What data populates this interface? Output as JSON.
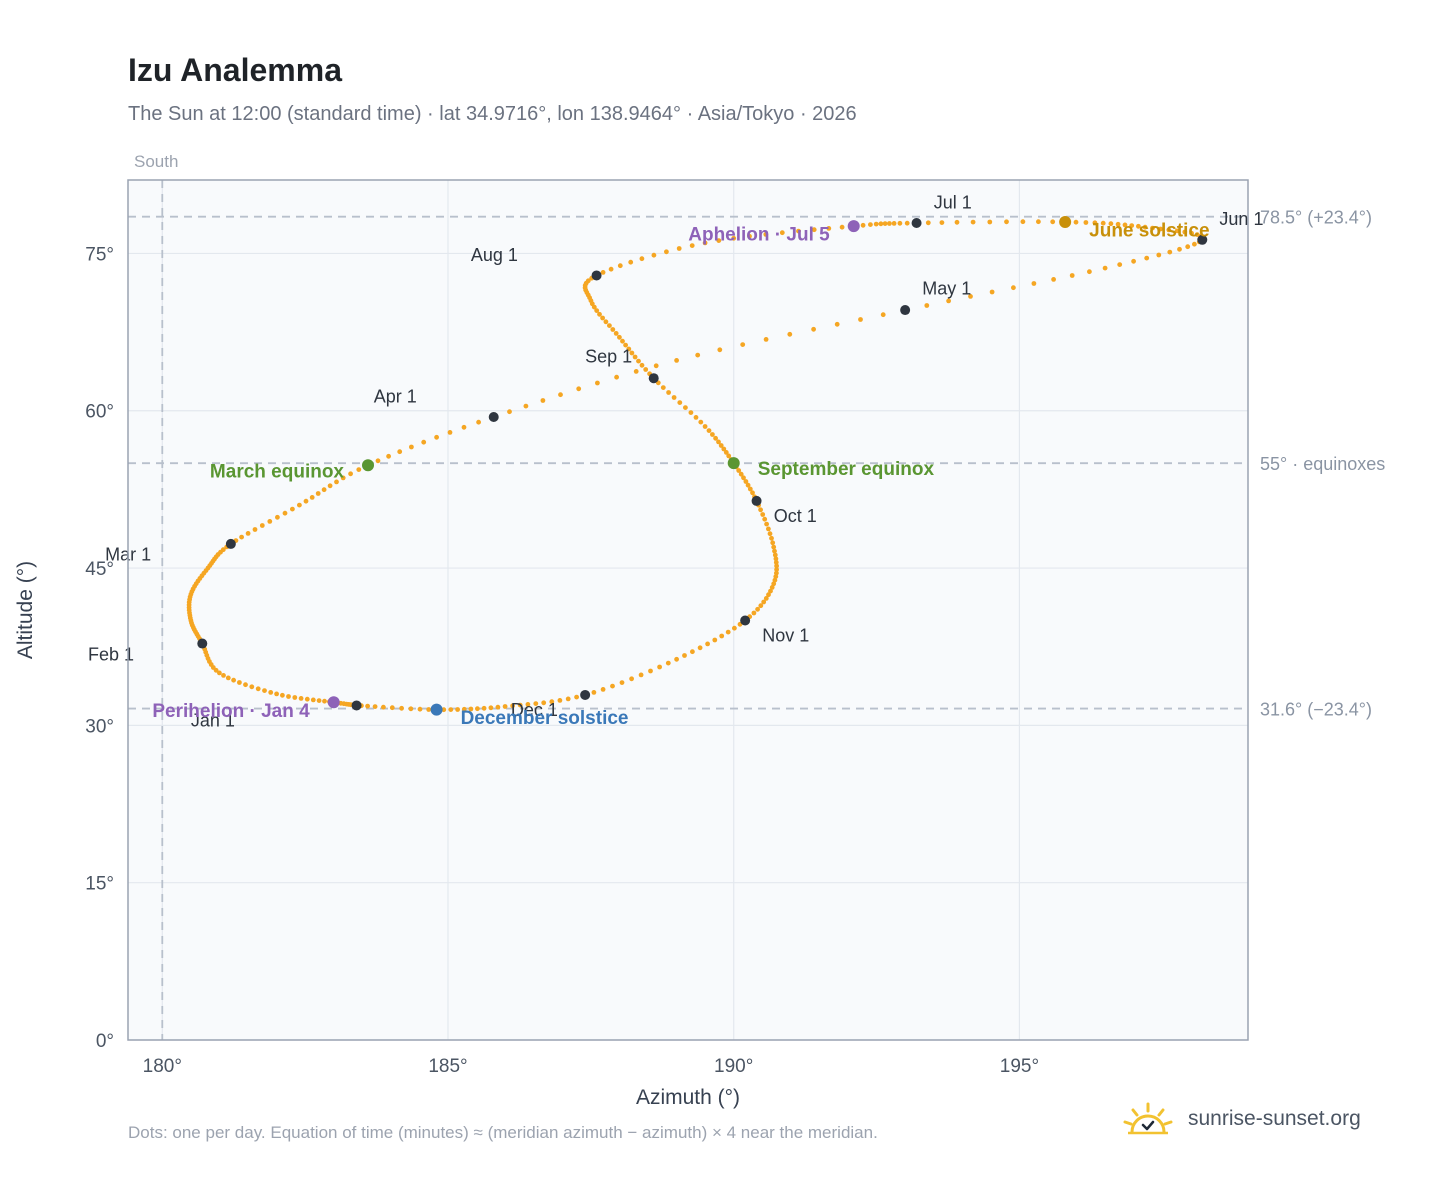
{
  "header": {
    "title": "Izu Analemma",
    "subtitle": "The Sun at 12:00 (standard time) · lat 34.9716°, lon 138.9464° · Asia/Tokyo · 2026"
  },
  "footer": {
    "note": "Dots: one per day. Equation of time (minutes) ≈ (meridian azimuth − azimuth) × 4 near the meridian.",
    "brand": "sunrise-sunset.org"
  },
  "colors": {
    "path": "#f5a623",
    "month_marker": "#2f3640",
    "equinox": "#5a9632",
    "june_solstice": "#c8900a",
    "december_solstice": "#3a78b8",
    "apsis": "#8e62b8",
    "reference_line": "#b8c0cc",
    "plot_background": "#f8fafc",
    "grid": "#e3e8ee",
    "frame": "#9aa3b2"
  },
  "chart_data": {
    "type": "scatter",
    "title": "Izu Analemma",
    "xlabel": "Azimuth (°)",
    "ylabel": "Altitude (°)",
    "xlim": [
      179.4,
      199.0
    ],
    "ylim": [
      0,
      82
    ],
    "xticks": [
      180,
      185,
      190,
      195
    ],
    "xtick_labels": [
      "180°",
      "185°",
      "190°",
      "195°"
    ],
    "yticks": [
      0,
      15,
      30,
      45,
      60,
      75
    ],
    "ytick_labels": [
      "0°",
      "15°",
      "30°",
      "45°",
      "60°",
      "75°"
    ],
    "grid": true,
    "meridian": {
      "azimuth": 180,
      "label": "South"
    },
    "reference_lines": [
      {
        "altitude": 78.5,
        "label": "78.5° (+23.4°)"
      },
      {
        "altitude": 55,
        "label": "55° · equinoxes"
      },
      {
        "altitude": 31.6,
        "label": "31.6° (−23.4°)"
      }
    ],
    "path_points": [
      {
        "az": 183.4,
        "alt": 31.9
      },
      {
        "az": 183.0,
        "alt": 32.2
      },
      {
        "az": 182.0,
        "alt": 33.0
      },
      {
        "az": 181.0,
        "alt": 35.0
      },
      {
        "az": 180.7,
        "alt": 37.8
      },
      {
        "az": 180.5,
        "alt": 40.0
      },
      {
        "az": 180.5,
        "alt": 42.5
      },
      {
        "az": 180.8,
        "alt": 45.0
      },
      {
        "az": 181.2,
        "alt": 47.3
      },
      {
        "az": 182.4,
        "alt": 51.0
      },
      {
        "az": 183.6,
        "alt": 54.8
      },
      {
        "az": 185.8,
        "alt": 59.4
      },
      {
        "az": 189.0,
        "alt": 64.8
      },
      {
        "az": 193.0,
        "alt": 69.6
      },
      {
        "az": 196.5,
        "alt": 73.6
      },
      {
        "az": 198.2,
        "alt": 76.3
      },
      {
        "az": 197.2,
        "alt": 77.5
      },
      {
        "az": 195.8,
        "alt": 78.0
      },
      {
        "az": 193.2,
        "alt": 77.9
      },
      {
        "az": 192.1,
        "alt": 77.6
      },
      {
        "az": 189.5,
        "alt": 76.0
      },
      {
        "az": 187.6,
        "alt": 72.9
      },
      {
        "az": 187.5,
        "alt": 70.5
      },
      {
        "az": 188.0,
        "alt": 67.0
      },
      {
        "az": 188.6,
        "alt": 63.1
      },
      {
        "az": 189.5,
        "alt": 58.5
      },
      {
        "az": 190.0,
        "alt": 55.0
      },
      {
        "az": 190.4,
        "alt": 51.4
      },
      {
        "az": 190.7,
        "alt": 47.0
      },
      {
        "az": 190.7,
        "alt": 43.5
      },
      {
        "az": 190.2,
        "alt": 40.0
      },
      {
        "az": 189.0,
        "alt": 36.3
      },
      {
        "az": 187.4,
        "alt": 32.9
      },
      {
        "az": 186.0,
        "alt": 31.8
      },
      {
        "az": 184.8,
        "alt": 31.5
      },
      {
        "az": 183.4,
        "alt": 31.9
      }
    ],
    "month_markers": [
      {
        "label": "Jan 1",
        "az": 183.4,
        "alt": 31.9,
        "lx": -2.9,
        "ly": -2.0
      },
      {
        "label": "Feb 1",
        "az": 180.7,
        "alt": 37.8,
        "lx": -2.0,
        "ly": -1.6
      },
      {
        "label": "Mar 1",
        "az": 181.2,
        "alt": 47.3,
        "lx": -2.2,
        "ly": -1.6
      },
      {
        "label": "Apr 1",
        "az": 185.8,
        "alt": 59.4,
        "lx": -2.1,
        "ly": 1.4
      },
      {
        "label": "May 1",
        "az": 193.0,
        "alt": 69.6,
        "lx": 0.3,
        "ly": 1.5
      },
      {
        "label": "Jun 1",
        "az": 198.2,
        "alt": 76.3,
        "lx": 0.3,
        "ly": 1.4
      },
      {
        "label": "Jul 1",
        "az": 193.2,
        "alt": 77.9,
        "lx": 0.3,
        "ly": 1.4
      },
      {
        "label": "Aug 1",
        "az": 187.6,
        "alt": 72.9,
        "lx": -2.2,
        "ly": 1.4
      },
      {
        "label": "Sep 1",
        "az": 188.6,
        "alt": 63.1,
        "lx": -1.2,
        "ly": 1.5
      },
      {
        "label": "Oct 1",
        "az": 190.4,
        "alt": 51.4,
        "lx": 0.3,
        "ly": -2.0
      },
      {
        "label": "Nov 1",
        "az": 190.2,
        "alt": 40.0,
        "lx": 0.3,
        "ly": -2.0
      },
      {
        "label": "Dec 1",
        "az": 187.4,
        "alt": 32.9,
        "lx": -1.3,
        "ly": -2.0
      }
    ],
    "events": [
      {
        "label": "March equinox",
        "az": 183.6,
        "alt": 54.8,
        "colorKey": "equinox",
        "anchor": "end",
        "lx": -0.35,
        "ly": -0.4
      },
      {
        "label": "September equinox",
        "az": 190.0,
        "alt": 55.0,
        "colorKey": "equinox",
        "anchor": "start",
        "lx": 0.35,
        "ly": -0.4
      },
      {
        "label": "June solstice",
        "az": 195.8,
        "alt": 78.0,
        "colorKey": "june_solstice",
        "anchor": "start",
        "lx": 0.35,
        "ly": -0.6
      },
      {
        "label": "December solstice",
        "az": 184.8,
        "alt": 31.5,
        "colorKey": "december_solstice",
        "anchor": "start",
        "lx": 0.35,
        "ly": -0.6
      },
      {
        "label": "Aphelion · Jul 5",
        "az": 192.1,
        "alt": 77.6,
        "colorKey": "apsis",
        "anchor": "end",
        "lx": -0.35,
        "ly": -0.6
      },
      {
        "label": "Perihelion · Jan 4",
        "az": 183.0,
        "alt": 32.2,
        "colorKey": "apsis",
        "anchor": "end",
        "lx": -0.35,
        "ly": -0.6
      }
    ]
  }
}
